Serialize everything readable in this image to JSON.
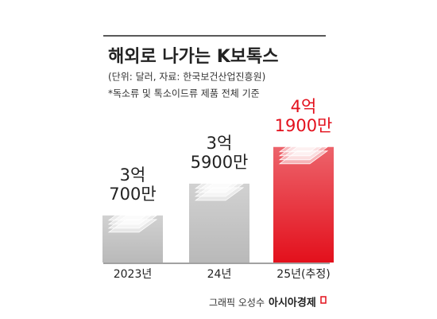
{
  "chart_data": {
    "type": "bar",
    "title": "해외로 나가는 K보톡스",
    "subtitle": "(단위: 달러, 자료: 한국보건산업진흥원)",
    "note": "*독소류 및 톡소이드류 제품 전체 기준",
    "credit": "그래픽 오성수",
    "source": "아시아경제",
    "categories": [
      "2023년",
      "24년",
      "25년(추정)"
    ],
    "values": [
      307000000,
      359000000,
      419000000
    ],
    "value_labels": [
      [
        "3억",
        "700만"
      ],
      [
        "3억",
        "5900만"
      ],
      [
        "4억",
        "1900만"
      ]
    ],
    "colors": [
      "#b9b9b9",
      "#b9b9b9",
      "#e3101c"
    ],
    "label_colors": [
      "#222222",
      "#222222",
      "#e3101c"
    ],
    "ylim": [
      230000000,
      450000000
    ]
  }
}
